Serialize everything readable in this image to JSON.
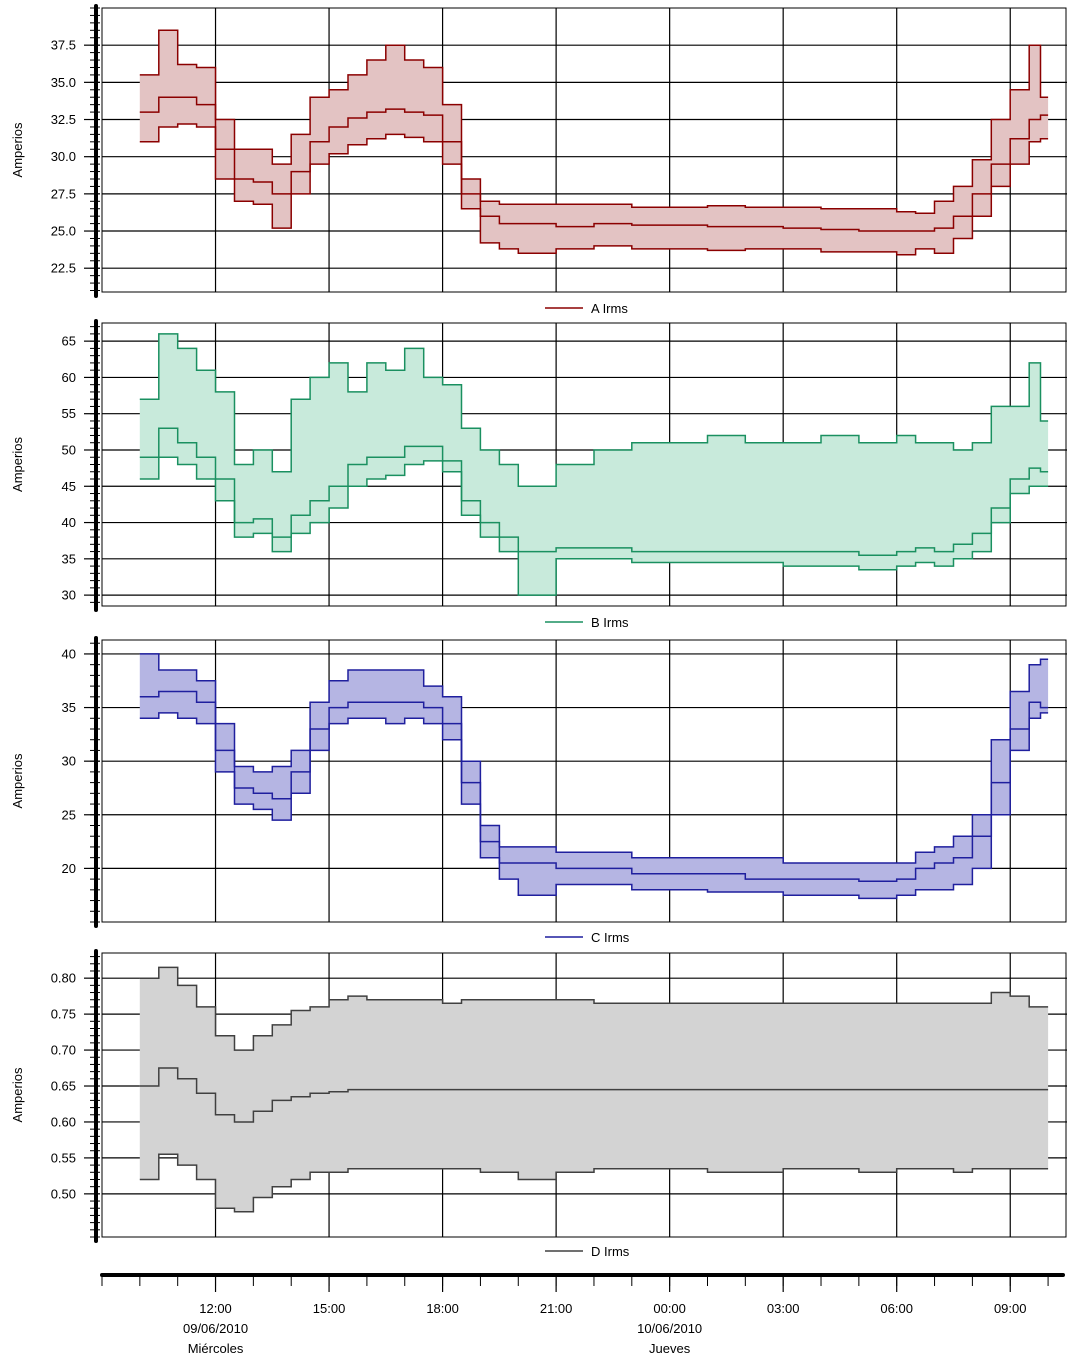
{
  "chart_data": [
    {
      "type": "area",
      "id": "a",
      "ylabel": "Amperios",
      "ylim": [
        20.9,
        40.0
      ],
      "yticks": [
        "22.5",
        "25.0",
        "27.5",
        "30.0",
        "32.5",
        "35.0",
        "37.5"
      ],
      "grid": true,
      "legend": "bottom-center",
      "colors": {
        "line": "#8b0000",
        "fill": "#e3c3c3"
      },
      "series": [
        {
          "name": "A Irms",
          "x": [
            10.0,
            10.5,
            11.0,
            11.5,
            12.0,
            12.5,
            13.0,
            13.5,
            14.0,
            14.5,
            15.0,
            15.5,
            16.0,
            16.5,
            17.0,
            17.5,
            18.0,
            18.5,
            19.0,
            19.5,
            20.0,
            21.0,
            22.0,
            23.0,
            24.0,
            25.0,
            26.0,
            27.0,
            28.0,
            29.0,
            30.0,
            30.5,
            31.0,
            31.5,
            32.0,
            32.5,
            33.0,
            33.5,
            33.8
          ],
          "min": [
            31.0,
            32.0,
            32.2,
            32.0,
            28.5,
            27.0,
            26.8,
            25.2,
            27.5,
            29.5,
            30.2,
            30.8,
            31.2,
            31.5,
            31.3,
            31.0,
            29.5,
            26.5,
            24.2,
            23.8,
            23.5,
            23.8,
            24.0,
            23.8,
            23.8,
            23.7,
            23.8,
            23.8,
            23.6,
            23.6,
            23.4,
            23.8,
            23.5,
            24.5,
            26.0,
            28.0,
            29.5,
            31.0,
            31.2
          ],
          "mean": [
            33.0,
            34.0,
            34.0,
            33.5,
            30.5,
            28.5,
            28.3,
            27.5,
            29.0,
            31.0,
            32.0,
            32.6,
            33.0,
            33.2,
            33.0,
            32.8,
            31.0,
            27.5,
            26.0,
            25.5,
            25.5,
            25.3,
            25.5,
            25.4,
            25.4,
            25.3,
            25.3,
            25.2,
            25.1,
            25.0,
            25.0,
            25.0,
            25.2,
            26.0,
            27.5,
            29.5,
            31.2,
            32.5,
            32.8
          ],
          "max": [
            35.5,
            38.5,
            36.2,
            36.0,
            32.5,
            30.5,
            30.5,
            29.5,
            31.5,
            34.0,
            34.5,
            35.5,
            36.5,
            37.5,
            36.5,
            36.0,
            33.5,
            28.5,
            27.0,
            26.8,
            26.8,
            26.8,
            26.8,
            26.6,
            26.6,
            26.7,
            26.6,
            26.6,
            26.5,
            26.5,
            26.3,
            26.2,
            27.0,
            28.0,
            29.8,
            32.5,
            34.5,
            37.5,
            34.0
          ]
        }
      ]
    },
    {
      "type": "area",
      "id": "b",
      "ylabel": "Amperios",
      "ylim": [
        28.5,
        67.5
      ],
      "yticks": [
        "30",
        "35",
        "40",
        "45",
        "50",
        "55",
        "60",
        "65"
      ],
      "grid": true,
      "legend": "bottom-center",
      "colors": {
        "line": "#1a9060",
        "fill": "#c8eadb"
      },
      "series": [
        {
          "name": "B Irms",
          "x": [
            10.0,
            10.5,
            11.0,
            11.5,
            12.0,
            12.5,
            13.0,
            13.5,
            14.0,
            14.5,
            15.0,
            15.5,
            16.0,
            16.5,
            17.0,
            17.5,
            18.0,
            18.5,
            19.0,
            19.5,
            20.0,
            21.0,
            22.0,
            23.0,
            24.0,
            25.0,
            26.0,
            27.0,
            28.0,
            29.0,
            30.0,
            30.5,
            31.0,
            31.5,
            32.0,
            32.5,
            33.0,
            33.5,
            33.8
          ],
          "min": [
            46.0,
            49.0,
            48.0,
            46.0,
            43.0,
            38.0,
            38.5,
            36.0,
            38.5,
            40.0,
            42.0,
            45.0,
            46.0,
            46.5,
            48.0,
            48.5,
            47.0,
            41.0,
            38.0,
            36.0,
            30.0,
            35.0,
            35.0,
            34.5,
            34.5,
            34.5,
            34.5,
            34.0,
            34.0,
            33.5,
            34.0,
            34.5,
            34.0,
            35.0,
            36.0,
            40.0,
            44.0,
            45.0,
            45.0
          ],
          "mean": [
            49.0,
            53.0,
            51.0,
            49.0,
            46.0,
            40.0,
            40.5,
            38.0,
            41.0,
            43.0,
            45.0,
            48.0,
            49.0,
            49.0,
            50.5,
            50.5,
            48.5,
            43.0,
            40.0,
            38.0,
            36.0,
            36.5,
            36.5,
            36.0,
            36.0,
            36.0,
            36.0,
            36.0,
            36.0,
            35.5,
            36.0,
            36.5,
            36.0,
            37.0,
            38.5,
            42.0,
            46.0,
            47.5,
            47.0
          ],
          "max": [
            57.0,
            66.0,
            64.0,
            61.0,
            58.0,
            48.0,
            50.0,
            47.0,
            57.0,
            60.0,
            62.0,
            58.0,
            62.0,
            61.0,
            64.0,
            60.0,
            59.0,
            53.0,
            50.0,
            48.0,
            45.0,
            48.0,
            50.0,
            51.0,
            51.0,
            52.0,
            51.0,
            51.0,
            52.0,
            51.0,
            52.0,
            51.0,
            51.0,
            50.0,
            51.0,
            56.0,
            56.0,
            62.0,
            54.0
          ]
        }
      ]
    },
    {
      "type": "area",
      "id": "c",
      "ylabel": "Amperios",
      "ylim": [
        15.0,
        41.3
      ],
      "yticks": [
        "20",
        "25",
        "30",
        "35",
        "40"
      ],
      "grid": true,
      "legend": "bottom-center",
      "colors": {
        "line": "#1f1f9e",
        "fill": "#b5b5e3"
      },
      "series": [
        {
          "name": "C Irms",
          "x": [
            10.0,
            10.5,
            11.0,
            11.5,
            12.0,
            12.5,
            13.0,
            13.5,
            14.0,
            14.5,
            15.0,
            15.5,
            16.0,
            16.5,
            17.0,
            17.5,
            18.0,
            18.5,
            19.0,
            19.5,
            20.0,
            21.0,
            22.0,
            23.0,
            24.0,
            25.0,
            26.0,
            27.0,
            28.0,
            29.0,
            30.0,
            30.5,
            31.0,
            31.5,
            32.0,
            32.5,
            33.0,
            33.5,
            33.8
          ],
          "min": [
            34.0,
            34.5,
            34.0,
            33.5,
            29.0,
            26.0,
            25.5,
            24.5,
            27.0,
            31.0,
            33.5,
            34.0,
            34.0,
            33.5,
            34.0,
            33.5,
            32.0,
            26.0,
            21.0,
            19.0,
            17.5,
            18.5,
            18.5,
            18.0,
            18.0,
            17.8,
            17.8,
            17.5,
            17.5,
            17.2,
            17.5,
            18.0,
            18.0,
            18.5,
            20.0,
            25.0,
            31.0,
            34.0,
            34.5
          ],
          "mean": [
            36.0,
            36.5,
            36.5,
            35.5,
            31.0,
            27.5,
            27.0,
            26.5,
            29.0,
            33.0,
            35.0,
            35.5,
            35.5,
            35.5,
            35.5,
            35.0,
            33.5,
            28.0,
            22.5,
            20.5,
            20.5,
            20.0,
            20.0,
            19.5,
            19.5,
            19.5,
            19.0,
            19.0,
            19.0,
            18.8,
            19.0,
            20.0,
            20.5,
            21.0,
            23.0,
            28.0,
            33.0,
            35.5,
            35.0
          ],
          "max": [
            40.0,
            38.5,
            38.5,
            37.5,
            33.5,
            29.5,
            29.0,
            29.5,
            31.0,
            35.5,
            37.5,
            38.5,
            38.5,
            38.5,
            38.5,
            37.0,
            36.0,
            30.0,
            24.0,
            22.0,
            22.0,
            21.5,
            21.5,
            21.0,
            21.0,
            21.0,
            21.0,
            20.5,
            20.5,
            20.5,
            20.5,
            21.5,
            22.0,
            23.0,
            25.0,
            32.0,
            36.5,
            39.0,
            39.5
          ]
        }
      ]
    },
    {
      "type": "area",
      "id": "d",
      "ylabel": "Amperios",
      "ylim": [
        0.44,
        0.835
      ],
      "yticks": [
        "0.50",
        "0.55",
        "0.60",
        "0.65",
        "0.70",
        "0.75",
        "0.80"
      ],
      "grid": true,
      "legend": "bottom-center",
      "colors": {
        "line": "#404040",
        "fill": "#d3d3d3"
      },
      "series": [
        {
          "name": "D Irms",
          "x": [
            10.0,
            10.5,
            11.0,
            11.5,
            12.0,
            12.5,
            13.0,
            13.5,
            14.0,
            14.5,
            15.0,
            15.5,
            16.0,
            16.5,
            17.0,
            17.5,
            18.0,
            18.5,
            19.0,
            19.5,
            20.0,
            21.0,
            22.0,
            23.0,
            24.0,
            25.0,
            26.0,
            27.0,
            28.0,
            29.0,
            30.0,
            30.5,
            31.0,
            31.5,
            32.0,
            32.5,
            33.0,
            33.5,
            33.8
          ],
          "min": [
            0.52,
            0.555,
            0.54,
            0.52,
            0.48,
            0.475,
            0.495,
            0.51,
            0.52,
            0.53,
            0.53,
            0.535,
            0.535,
            0.535,
            0.535,
            0.535,
            0.535,
            0.535,
            0.53,
            0.53,
            0.52,
            0.53,
            0.535,
            0.535,
            0.535,
            0.53,
            0.53,
            0.535,
            0.535,
            0.53,
            0.535,
            0.535,
            0.535,
            0.53,
            0.535,
            0.535,
            0.535,
            0.535,
            0.535
          ],
          "mean": [
            0.65,
            0.675,
            0.66,
            0.64,
            0.61,
            0.6,
            0.615,
            0.63,
            0.635,
            0.64,
            0.642,
            0.645,
            0.645,
            0.645,
            0.645,
            0.645,
            0.645,
            0.645,
            0.645,
            0.645,
            0.645,
            0.645,
            0.645,
            0.645,
            0.645,
            0.645,
            0.645,
            0.645,
            0.645,
            0.645,
            0.645,
            0.645,
            0.645,
            0.645,
            0.645,
            0.645,
            0.645,
            0.645,
            0.645
          ],
          "max": [
            0.8,
            0.815,
            0.79,
            0.76,
            0.72,
            0.7,
            0.72,
            0.735,
            0.755,
            0.76,
            0.77,
            0.775,
            0.77,
            0.77,
            0.77,
            0.77,
            0.765,
            0.77,
            0.77,
            0.77,
            0.77,
            0.77,
            0.765,
            0.765,
            0.765,
            0.765,
            0.765,
            0.765,
            0.765,
            0.765,
            0.765,
            0.765,
            0.765,
            0.765,
            0.765,
            0.78,
            0.775,
            0.76,
            0.76
          ]
        }
      ]
    }
  ],
  "time_axis": {
    "xlim": [
      9.0,
      34.5
    ],
    "ticks": [
      {
        "x": 12,
        "label": "12:00",
        "sub1": "09/06/2010",
        "sub2": "Miércoles"
      },
      {
        "x": 15,
        "label": "15:00",
        "sub1": "",
        "sub2": ""
      },
      {
        "x": 18,
        "label": "18:00",
        "sub1": "",
        "sub2": ""
      },
      {
        "x": 21,
        "label": "21:00",
        "sub1": "",
        "sub2": ""
      },
      {
        "x": 24,
        "label": "00:00",
        "sub1": "10/06/2010",
        "sub2": "Jueves"
      },
      {
        "x": 27,
        "label": "03:00",
        "sub1": "",
        "sub2": ""
      },
      {
        "x": 30,
        "label": "06:00",
        "sub1": "",
        "sub2": ""
      },
      {
        "x": 33,
        "label": "09:00",
        "sub1": "",
        "sub2": ""
      }
    ]
  }
}
